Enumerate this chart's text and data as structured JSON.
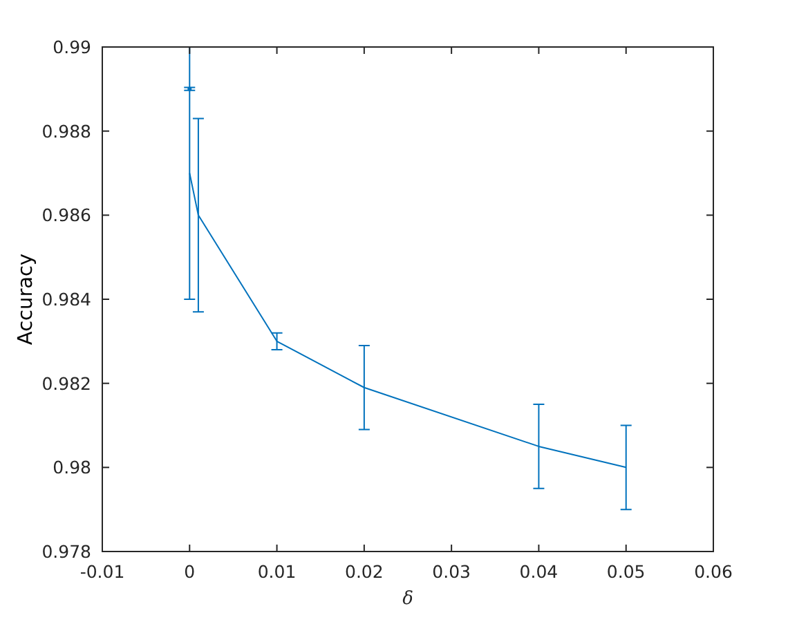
{
  "chart_data": {
    "type": "line",
    "xlabel": "δ",
    "ylabel": "Accuracy",
    "x": [
      0,
      0.001,
      0.01,
      0.02,
      0.04,
      0.05
    ],
    "series": [
      {
        "color": "#0072bd",
        "values": [
          0.987,
          0.986,
          0.983,
          0.9819,
          0.9805,
          0.98
        ],
        "errors": [
          0.003,
          0.0023,
          0.0002,
          0.001,
          0.001,
          0.001
        ]
      },
      {
        "type": "scatter",
        "marker": "circle",
        "color": "#0072bd",
        "x": [
          0
        ],
        "values": [
          0.989
        ],
        "errors": [
          [
            0.98897,
            0.98904
          ]
        ]
      }
    ],
    "xlim": [
      -0.01,
      0.06
    ],
    "ylim": [
      0.978,
      0.99
    ],
    "xticks": [
      -0.01,
      0,
      0.01,
      0.02,
      0.03,
      0.04,
      0.05,
      0.06
    ],
    "yticks": [
      0.978,
      0.98,
      0.982,
      0.984,
      0.986,
      0.988,
      0.99
    ]
  }
}
